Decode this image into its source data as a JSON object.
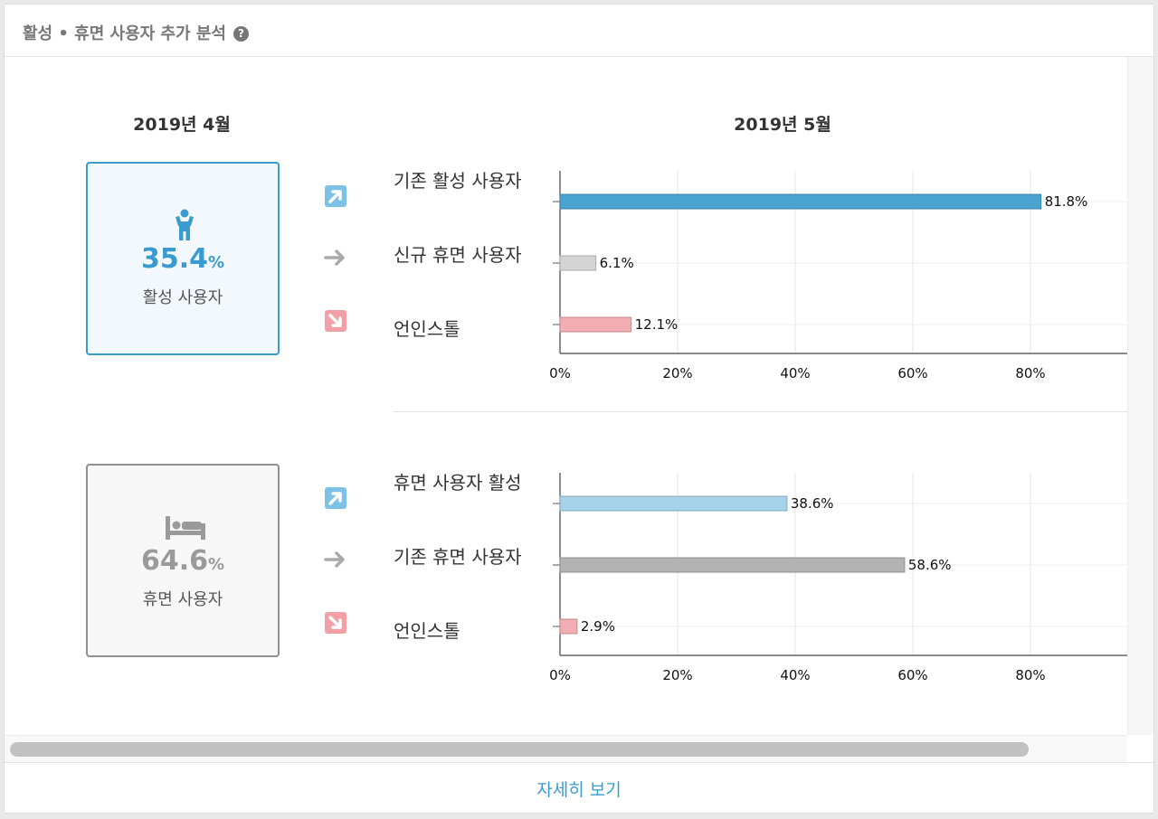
{
  "header": {
    "title": "활성 • 휴면 사용자 추가 분석",
    "help_icon": "question-circle-icon"
  },
  "left_month": "2019년 4월",
  "right_month": "2019년 5월",
  "sections": [
    {
      "key": "active",
      "box": {
        "icon": "person-icon",
        "value": "35.4",
        "unit": "%",
        "label": "활성 사용자",
        "color": "#3a9bd0"
      },
      "rows": [
        {
          "arrow": "arrow-up-right-icon",
          "label": "기존 활성 사용자"
        },
        {
          "arrow": "arrow-right-icon",
          "label": "신규 휴면 사용자"
        },
        {
          "arrow": "arrow-down-right-icon",
          "label": "언인스톨"
        }
      ]
    },
    {
      "key": "dormant",
      "box": {
        "icon": "bed-icon",
        "value": "64.6",
        "unit": "%",
        "label": "휴면 사용자",
        "color": "#9a9a9a"
      },
      "rows": [
        {
          "arrow": "arrow-up-right-icon",
          "label": "휴면 사용자 활성"
        },
        {
          "arrow": "arrow-right-icon",
          "label": "기존 휴면 사용자"
        },
        {
          "arrow": "arrow-down-right-icon",
          "label": "언인스톨"
        }
      ]
    }
  ],
  "chart_data": [
    {
      "type": "bar",
      "orientation": "horizontal",
      "categories": [
        "기존 활성 사용자",
        "신규 휴면 사용자",
        "언인스톨"
      ],
      "values": [
        81.8,
        6.1,
        12.1
      ],
      "value_labels": [
        "81.8%",
        "6.1%",
        "12.1%"
      ],
      "colors": [
        "#4aa3d1",
        "#d4d4d4",
        "#f3aeb3"
      ],
      "xlim": [
        0,
        100
      ],
      "ticks": [
        0,
        20,
        40,
        60,
        80
      ],
      "tick_labels": [
        "0%",
        "20%",
        "40%",
        "60%",
        "80%"
      ],
      "grid": true
    },
    {
      "type": "bar",
      "orientation": "horizontal",
      "categories": [
        "휴면 사용자 활성",
        "기존 휴면 사용자",
        "언인스톨"
      ],
      "values": [
        38.6,
        58.6,
        2.9
      ],
      "value_labels": [
        "38.6%",
        "58.6%",
        "2.9%"
      ],
      "colors": [
        "#a7d3ea",
        "#b3b3b3",
        "#f3aeb3"
      ],
      "xlim": [
        0,
        100
      ],
      "ticks": [
        0,
        20,
        40,
        60,
        80
      ],
      "tick_labels": [
        "0%",
        "20%",
        "40%",
        "60%",
        "80%"
      ],
      "grid": true
    }
  ],
  "footer": {
    "detail_link": "자세히 보기"
  }
}
